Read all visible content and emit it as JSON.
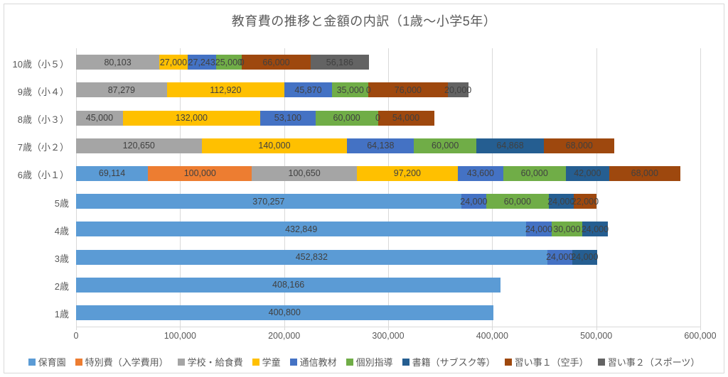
{
  "chart_data": {
    "type": "bar",
    "variant": "horizontal-stacked",
    "title": "教育費の推移と金額の内訳（1歳〜小学5年）",
    "categories": [
      "10歳（小５）",
      "9歳（小４）",
      "8歳（小３）",
      "7歳（小２）",
      "6歳（小１）",
      "5歳",
      "4歳",
      "3歳",
      "2歳",
      "1歳"
    ],
    "series": [
      {
        "name": "保育園",
        "color": "#5B9BD5",
        "values": [
          null,
          null,
          null,
          null,
          69114,
          370257,
          432849,
          452832,
          408166,
          400800
        ]
      },
      {
        "name": "特別費（入学費用）",
        "color": "#ED7D31",
        "values": [
          null,
          null,
          null,
          null,
          100000,
          null,
          null,
          null,
          null,
          null
        ]
      },
      {
        "name": "学校・給食費",
        "color": "#A5A5A5",
        "values": [
          80103,
          87279,
          45000,
          120650,
          100650,
          null,
          null,
          null,
          null,
          null
        ]
      },
      {
        "name": "学童",
        "color": "#FFC000",
        "values": [
          27000,
          112920,
          132000,
          140000,
          97200,
          null,
          null,
          null,
          null,
          null
        ]
      },
      {
        "name": "通信教材",
        "color": "#4472C4",
        "values": [
          27243,
          45870,
          53100,
          64138,
          43600,
          24000,
          24000,
          24000,
          null,
          null
        ]
      },
      {
        "name": "個別指導",
        "color": "#70AD47",
        "values": [
          25000,
          35000,
          60000,
          60000,
          60000,
          60000,
          30000,
          null,
          null,
          null
        ]
      },
      {
        "name": "書籍（サブスク等）",
        "color": "#255E91",
        "values": [
          0,
          0,
          0,
          64868,
          42000,
          24000,
          24000,
          24000,
          null,
          null
        ]
      },
      {
        "name": "習い事１（空手）",
        "color": "#9E480E",
        "values": [
          66000,
          76000,
          54000,
          68000,
          68000,
          22000,
          null,
          null,
          null,
          null
        ]
      },
      {
        "name": "習い事２（スポーツ）",
        "color": "#636363",
        "values": [
          56186,
          20000,
          null,
          null,
          null,
          null,
          null,
          null,
          null,
          null
        ]
      }
    ],
    "xlim": [
      0,
      600000
    ],
    "x_ticks": [
      "0",
      "100,000",
      "200,000",
      "300,000",
      "400,000",
      "500,000",
      "600,000"
    ],
    "grid": true,
    "legend_position": "bottom"
  }
}
